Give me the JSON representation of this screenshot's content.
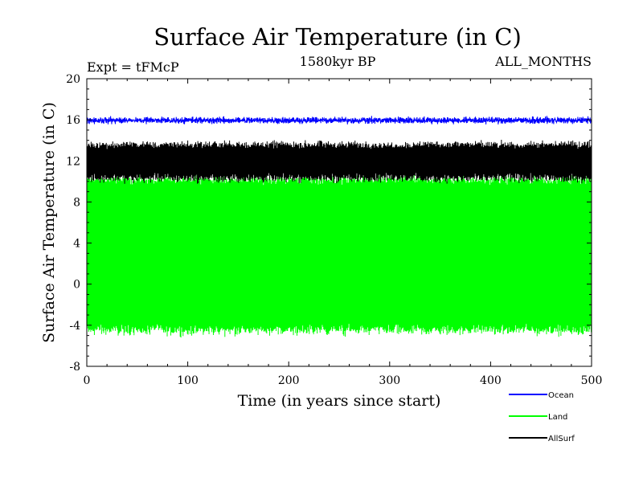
{
  "chart_data": {
    "type": "line",
    "title": "Surface Air Temperature (in C)",
    "subtitle": "1580kyr BP",
    "annotation_left": "Expt = tFMcP",
    "annotation_right": "ALL_MONTHS",
    "xlabel": "Time (in years since start)",
    "ylabel": "Surface Air Temperature (in C)",
    "xlim": [
      0,
      500
    ],
    "ylim": [
      -8,
      20
    ],
    "xticks": [
      0,
      100,
      200,
      300,
      400,
      500
    ],
    "yticks": [
      -8,
      -4,
      0,
      4,
      8,
      12,
      16,
      20
    ],
    "legend_position": "bottom-right",
    "series": [
      {
        "name": "Land",
        "color": "#00ff00",
        "low_mean": -4.5,
        "low_noise": 0.35,
        "high_mean": 10.2,
        "high_noise": 0.3
      },
      {
        "name": "AllSurf",
        "color": "#000000",
        "low_mean": 10.3,
        "low_noise": 0.3,
        "high_mean": 13.6,
        "high_noise": 0.25
      },
      {
        "name": "Ocean",
        "color": "#0000ff",
        "low_mean": 15.8,
        "low_noise": 0.15,
        "high_mean": 16.1,
        "high_noise": 0.15
      }
    ],
    "legend": [
      "Ocean",
      "Land",
      "AllSurf"
    ]
  }
}
